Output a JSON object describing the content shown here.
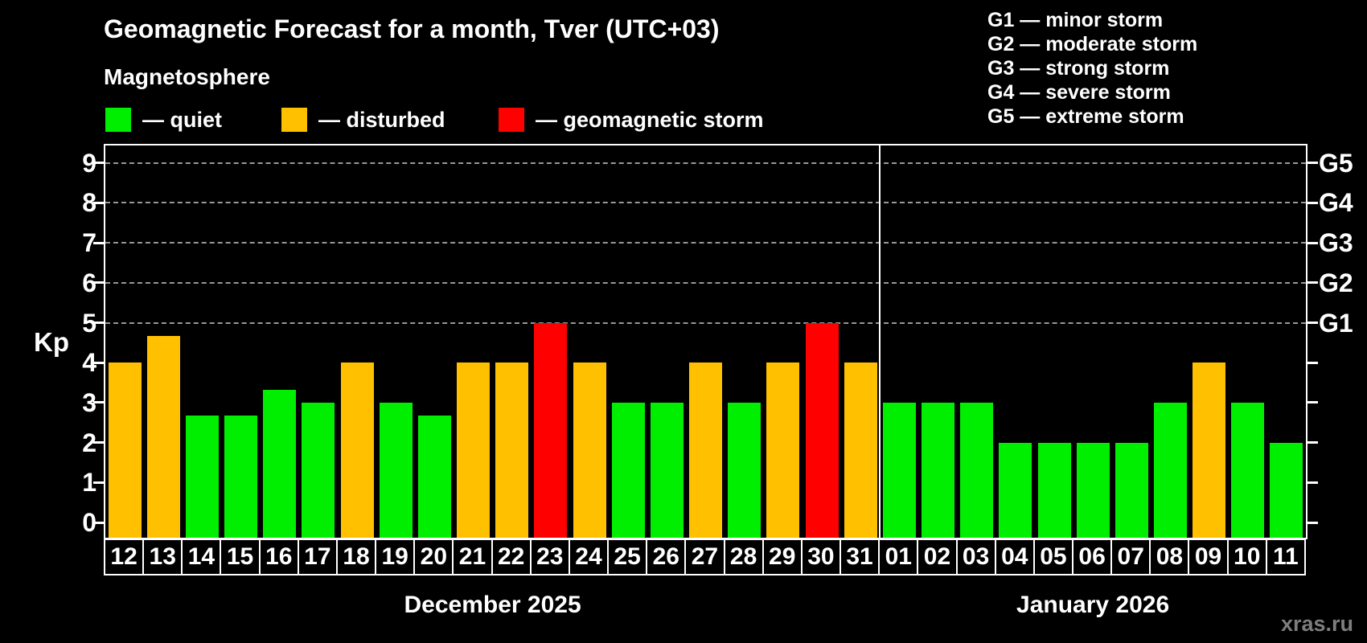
{
  "header": {
    "title": "Geomagnetic Forecast for a month, Tver (UTC+03)",
    "subtitle": "Magnetosphere",
    "legend": [
      {
        "status": "quiet",
        "label": "— quiet",
        "color": "#00ee00"
      },
      {
        "status": "disturbed",
        "label": "— disturbed",
        "color": "#ffc000"
      },
      {
        "status": "storm",
        "label": "— geomagnetic storm",
        "color": "#ff0000"
      }
    ]
  },
  "storm_scale": [
    "G1 — minor storm",
    "G2 — moderate storm",
    "G3 — strong storm",
    "G4 — severe storm",
    "G5 — extreme storm"
  ],
  "axes": {
    "kp_label": "Kp",
    "yticks": [
      0,
      1,
      2,
      3,
      4,
      5,
      6,
      7,
      8,
      9
    ],
    "gridlines": [
      5,
      6,
      7,
      8,
      9
    ],
    "right_labels": [
      {
        "label": "G1",
        "kp": 5
      },
      {
        "label": "G2",
        "kp": 6
      },
      {
        "label": "G3",
        "kp": 7
      },
      {
        "label": "G4",
        "kp": 8
      },
      {
        "label": "G5",
        "kp": 9
      }
    ]
  },
  "chart_data": {
    "type": "bar",
    "title": "Geomagnetic Forecast for a month, Tver (UTC+03)",
    "xlabel": "",
    "ylabel": "Kp",
    "ylim": [
      0,
      9.4
    ],
    "grid": "dashed horizontal at Kp 5-9",
    "legend_position": "top-left",
    "color_map": {
      "quiet": "#00ee00",
      "disturbed": "#ffc000",
      "storm": "#ff0000"
    },
    "months": [
      {
        "label": "December 2025",
        "days": [
          {
            "day": "12",
            "kp": 4.0,
            "status": "disturbed"
          },
          {
            "day": "13",
            "kp": 4.67,
            "status": "disturbed"
          },
          {
            "day": "14",
            "kp": 2.67,
            "status": "quiet"
          },
          {
            "day": "15",
            "kp": 2.67,
            "status": "quiet"
          },
          {
            "day": "16",
            "kp": 3.33,
            "status": "quiet"
          },
          {
            "day": "17",
            "kp": 3.0,
            "status": "quiet"
          },
          {
            "day": "18",
            "kp": 4.0,
            "status": "disturbed"
          },
          {
            "day": "19",
            "kp": 3.0,
            "status": "quiet"
          },
          {
            "day": "20",
            "kp": 2.67,
            "status": "quiet"
          },
          {
            "day": "21",
            "kp": 4.0,
            "status": "disturbed"
          },
          {
            "day": "22",
            "kp": 4.0,
            "status": "disturbed"
          },
          {
            "day": "23",
            "kp": 5.0,
            "status": "storm"
          },
          {
            "day": "24",
            "kp": 4.0,
            "status": "disturbed"
          },
          {
            "day": "25",
            "kp": 3.0,
            "status": "quiet"
          },
          {
            "day": "26",
            "kp": 3.0,
            "status": "quiet"
          },
          {
            "day": "27",
            "kp": 4.0,
            "status": "disturbed"
          },
          {
            "day": "28",
            "kp": 3.0,
            "status": "quiet"
          },
          {
            "day": "29",
            "kp": 4.0,
            "status": "disturbed"
          },
          {
            "day": "30",
            "kp": 5.0,
            "status": "storm"
          },
          {
            "day": "31",
            "kp": 4.0,
            "status": "disturbed"
          }
        ]
      },
      {
        "label": "January 2026",
        "days": [
          {
            "day": "01",
            "kp": 3.0,
            "status": "quiet"
          },
          {
            "day": "02",
            "kp": 3.0,
            "status": "quiet"
          },
          {
            "day": "03",
            "kp": 3.0,
            "status": "quiet"
          },
          {
            "day": "04",
            "kp": 2.0,
            "status": "quiet"
          },
          {
            "day": "05",
            "kp": 2.0,
            "status": "quiet"
          },
          {
            "day": "06",
            "kp": 2.0,
            "status": "quiet"
          },
          {
            "day": "07",
            "kp": 2.0,
            "status": "quiet"
          },
          {
            "day": "08",
            "kp": 3.0,
            "status": "quiet"
          },
          {
            "day": "09",
            "kp": 4.0,
            "status": "disturbed"
          },
          {
            "day": "10",
            "kp": 3.0,
            "status": "quiet"
          },
          {
            "day": "11",
            "kp": 2.0,
            "status": "quiet"
          }
        ]
      }
    ]
  },
  "footer": {
    "watermark": "xras.ru"
  }
}
